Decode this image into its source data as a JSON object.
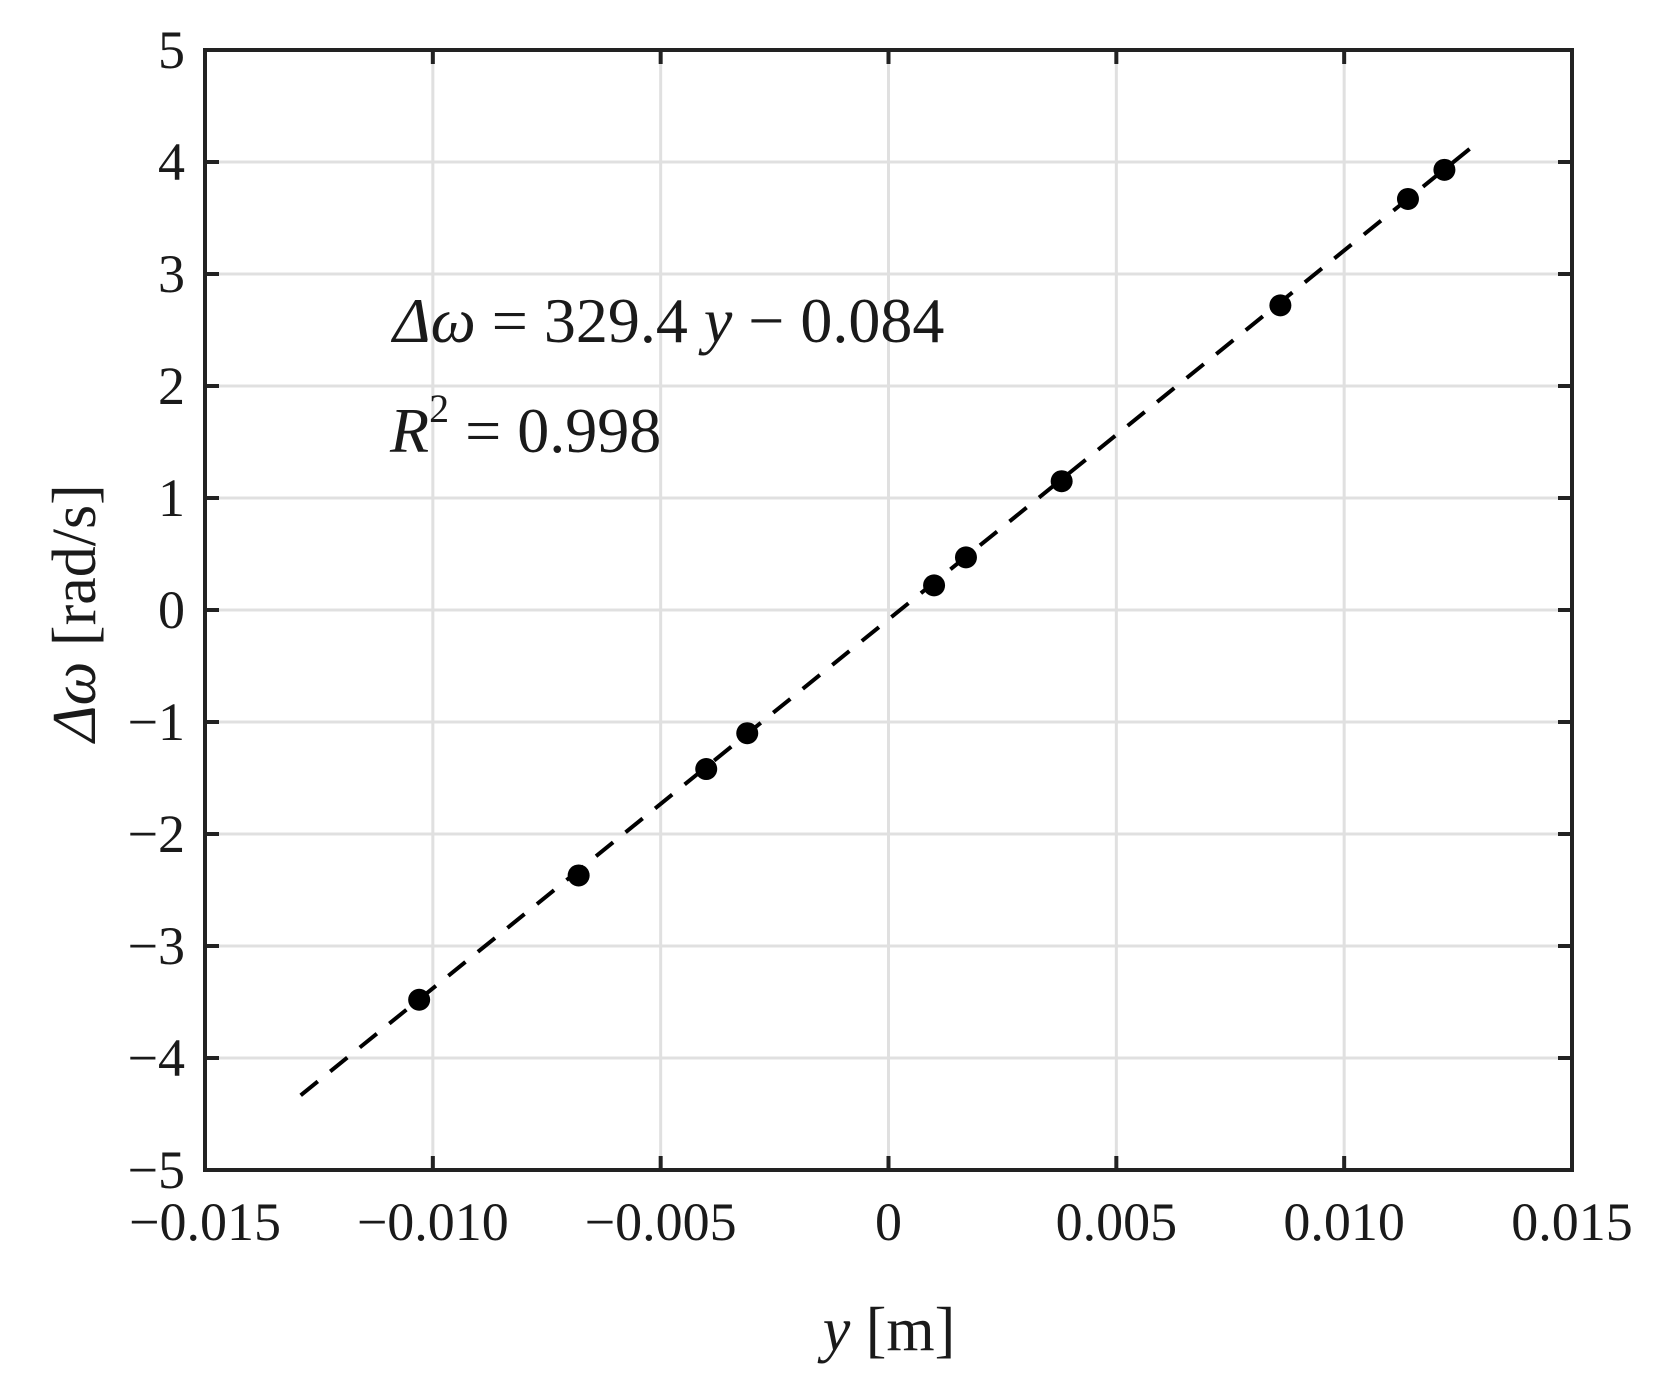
{
  "chart_data": {
    "type": "scatter",
    "xlabel": {
      "var": "y",
      "unit": " [m]"
    },
    "ylabel": {
      "var": "Δω",
      "unit": " [rad/s]"
    },
    "xlim": [
      -0.015,
      0.015
    ],
    "ylim": [
      -5,
      5
    ],
    "x_ticks": [
      {
        "value": -0.015,
        "label": "−0.015"
      },
      {
        "value": -0.01,
        "label": "−0.010"
      },
      {
        "value": -0.005,
        "label": "−0.005"
      },
      {
        "value": 0,
        "label": "0"
      },
      {
        "value": 0.005,
        "label": "0.005"
      },
      {
        "value": 0.01,
        "label": "0.010"
      },
      {
        "value": 0.015,
        "label": "0.015"
      }
    ],
    "y_ticks": [
      {
        "value": 5,
        "label": "5"
      },
      {
        "value": 4,
        "label": "4"
      },
      {
        "value": 3,
        "label": "3"
      },
      {
        "value": 2,
        "label": "2"
      },
      {
        "value": 1,
        "label": "1"
      },
      {
        "value": 0,
        "label": "0"
      },
      {
        "value": -1,
        "label": "−1"
      },
      {
        "value": -2,
        "label": "−2"
      },
      {
        "value": -3,
        "label": "−3"
      },
      {
        "value": -4,
        "label": "−4"
      },
      {
        "value": -5,
        "label": "−5"
      }
    ],
    "grid": true,
    "series": [
      {
        "type": "scatter",
        "color": "#000000",
        "points": [
          {
            "x": -0.0103,
            "y": -3.48
          },
          {
            "x": -0.0068,
            "y": -2.37
          },
          {
            "x": -0.004,
            "y": -1.42
          },
          {
            "x": -0.0031,
            "y": -1.1
          },
          {
            "x": 0.001,
            "y": 0.22
          },
          {
            "x": 0.0017,
            "y": 0.47
          },
          {
            "x": 0.0038,
            "y": 1.15
          },
          {
            "x": 0.0086,
            "y": 2.72
          },
          {
            "x": 0.0114,
            "y": 3.67
          },
          {
            "x": 0.0122,
            "y": 3.93
          }
        ]
      },
      {
        "type": "line",
        "style": "dashed",
        "color": "#000000",
        "fit": {
          "slope": 329.4,
          "intercept": -0.084
        },
        "x_range": [
          -0.0129,
          0.0129
        ]
      }
    ],
    "annotations": {
      "equation": {
        "lhs": "Δω",
        "rhs_coef": " = 329.4 ",
        "var": "y",
        "rhs_const": " − 0.084"
      },
      "r2": {
        "var": "R",
        "exp": "2",
        "rest": " = 0.998"
      }
    }
  }
}
